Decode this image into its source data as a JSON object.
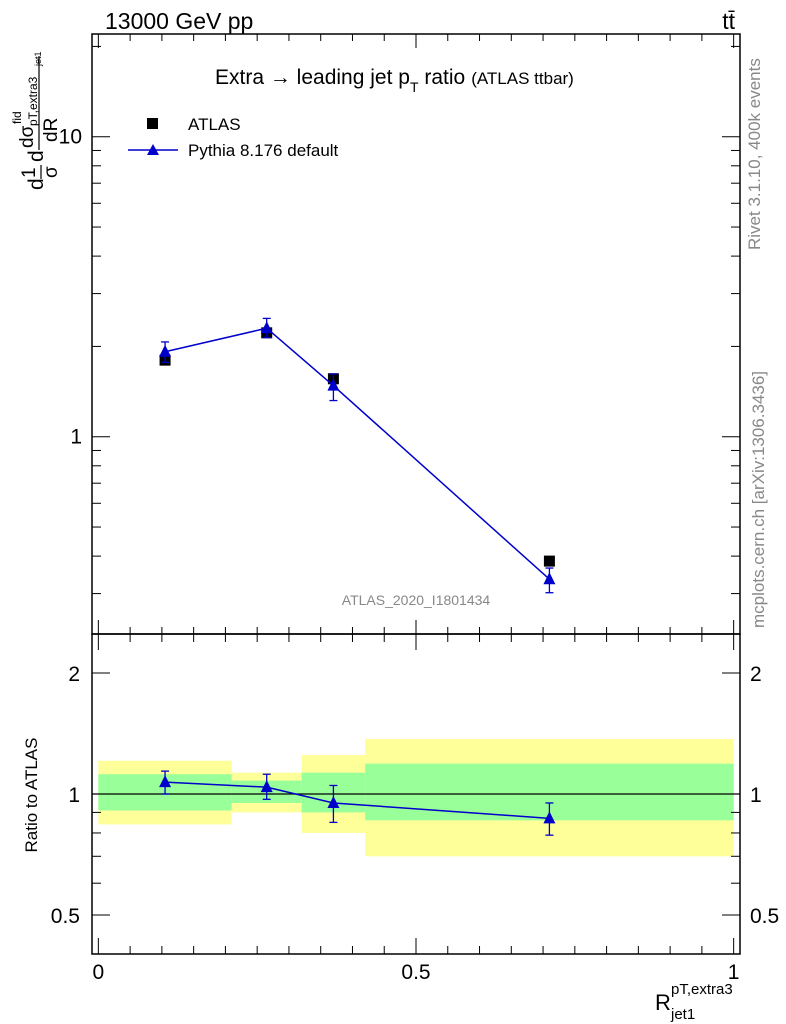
{
  "header": {
    "left": "13000 GeV pp",
    "right": "tt̄"
  },
  "side_labels": {
    "rivet": "Rivet 3.1.10,  400k events",
    "mcplots": "mcplots.cern.ch [arXiv:1306.3436]"
  },
  "chart_data": [
    {
      "type": "scatter",
      "title": "Extra → leading jet p_T ratio",
      "title_main": "Extra → leading jet p",
      "title_sub": "T",
      "title_tail": " ratio",
      "title_note": "(ATLAS ttbar)",
      "analysis_tag": "ATLAS_2020_I1801434",
      "ylabel": "1/σ dσ^fid_{pT,extra3 jet1} / dR",
      "ylabel_parts": [
        "d",
        "1",
        "σ",
        "d",
        "dσ",
        "fid",
        "pT,extra3",
        "jet1",
        "dR"
      ],
      "yscale": "log",
      "ylim": [
        0.22,
        22
      ],
      "xlim": [
        -0.01,
        1.01
      ],
      "yticks": [
        {
          "v": 1,
          "label": "1"
        },
        {
          "v": 10,
          "label": "10"
        }
      ],
      "legend_placement": "top-left",
      "series": [
        {
          "name": "ATLAS",
          "marker": "square",
          "color": "#000000",
          "x": [
            0.105,
            0.265,
            0.37,
            0.71
          ],
          "y": [
            1.8,
            2.22,
            1.56,
            0.385
          ],
          "yerr_lo": [
            0.05,
            0.07,
            0.06,
            0.012
          ],
          "yerr_hi": [
            0.05,
            0.07,
            0.06,
            0.012
          ]
        },
        {
          "name": "Pythia 8.176 default",
          "marker": "triangle",
          "color": "#0000cc",
          "x": [
            0.105,
            0.265,
            0.37,
            0.71
          ],
          "y": [
            1.92,
            2.3,
            1.48,
            0.335
          ],
          "yerr_lo": [
            0.15,
            0.16,
            0.16,
            0.033
          ],
          "yerr_hi": [
            0.15,
            0.18,
            0.14,
            0.03
          ]
        }
      ]
    },
    {
      "type": "scatter",
      "ylabel": "Ratio to ATLAS",
      "xlabel": "R^{pT,extra3}_{jet1}",
      "xlabel_main": "R",
      "xlabel_sup": "pT,extra3",
      "xlabel_sub": "jet1",
      "yscale": "log",
      "ylim": [
        0.4,
        2.5
      ],
      "xlim": [
        -0.01,
        1.01
      ],
      "yticks": [
        {
          "v": 0.5,
          "label": "0.5"
        },
        {
          "v": 1,
          "label": "1"
        },
        {
          "v": 2,
          "label": "2"
        }
      ],
      "xticks": [
        {
          "v": 0,
          "label": "0"
        },
        {
          "v": 0.5,
          "label": "0.5"
        },
        {
          "v": 1,
          "label": "1"
        }
      ],
      "bands": [
        {
          "x0": 0.0,
          "x1": 0.21,
          "yellow": [
            0.84,
            1.21
          ],
          "green": [
            0.91,
            1.12
          ]
        },
        {
          "x0": 0.21,
          "x1": 0.32,
          "yellow": [
            0.9,
            1.13
          ],
          "green": [
            0.95,
            1.08
          ]
        },
        {
          "x0": 0.32,
          "x1": 0.42,
          "yellow": [
            0.8,
            1.25
          ],
          "green": [
            0.9,
            1.13
          ]
        },
        {
          "x0": 0.42,
          "x1": 1.0,
          "yellow": [
            0.7,
            1.37
          ],
          "green": [
            0.86,
            1.19
          ]
        }
      ],
      "series": [
        {
          "name": "Pythia 8.176 default",
          "color": "#0000cc",
          "x": [
            0.105,
            0.265,
            0.37,
            0.71
          ],
          "y": [
            1.07,
            1.04,
            0.95,
            0.87
          ],
          "yerr_lo": [
            0.07,
            0.07,
            0.1,
            0.08
          ],
          "yerr_hi": [
            0.07,
            0.08,
            0.1,
            0.08
          ]
        }
      ]
    }
  ]
}
